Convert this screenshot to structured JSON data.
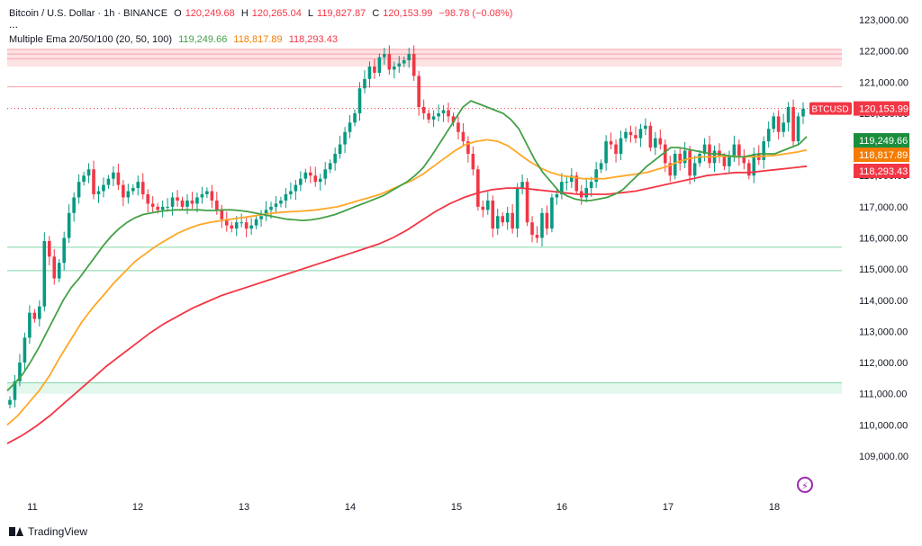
{
  "legend": {
    "symbol": "Bitcoin / U.S. Dollar · 1h · BINANCE",
    "o_label": "O",
    "o_value": "120,249.68",
    "h_label": "H",
    "h_value": "120,265.04",
    "l_label": "L",
    "l_value": "119,827.87",
    "c_label": "C",
    "c_value": "120,153.99",
    "change": "−98.78 (−0.08%)",
    "ellipsis": "...",
    "ema_name": "Multiple Ema 20/50/100 (20, 50, 100)",
    "ema20": "119,249.66",
    "ema50": "118,817.89",
    "ema100": "118,293.43"
  },
  "watermark": {
    "text": "TradingView",
    "icon": "tradingview-logo-icon"
  },
  "icons": {
    "bolt": "lightning-icon"
  },
  "chart_data": {
    "type": "candlestick",
    "ylim": [
      108400,
      123500
    ],
    "y_ticks": [
      109000,
      110000,
      111000,
      112000,
      113000,
      114000,
      115000,
      116000,
      117000,
      118000,
      119000,
      120000,
      121000,
      122000,
      123000
    ],
    "y_tick_labels": [
      "109,000.00",
      "110,000.00",
      "111,000.00",
      "112,000.00",
      "113,000.00",
      "114,000.00",
      "115,000.00",
      "116,000.00",
      "117,000.00",
      "118,000.00",
      "119,000.00",
      "120,000.00",
      "121,000.00",
      "122,000.00",
      "123,000.00"
    ],
    "x_labels": [
      "11",
      "12",
      "13",
      "14",
      "15",
      "16",
      "17",
      "18"
    ],
    "colors": {
      "up": "#089981",
      "down": "#f23645",
      "ema20": "#43a047",
      "ema50": "#ffa726",
      "ema100": "#f23645"
    },
    "ticker": "BTCUSD",
    "last_price": "120,153.99",
    "ema_tags": [
      "119,249.66",
      "118,817.89",
      "118,293.43"
    ],
    "ema_tag_values": [
      119249.66,
      118817.89,
      118293.43
    ],
    "last_price_value": 120153.99,
    "price_close_series": [
      110800,
      111400,
      112000,
      112800,
      113600,
      113400,
      113800,
      115900,
      115400,
      114700,
      115200,
      116000,
      116800,
      117300,
      117800,
      118000,
      118200,
      117400,
      117500,
      117700,
      117900,
      118100,
      117700,
      117300,
      117500,
      117600,
      117800,
      117400,
      117100,
      117000,
      116900,
      117000,
      117000,
      117300,
      117200,
      117000,
      117200,
      117100,
      117300,
      117400,
      117500,
      117200,
      116900,
      116600,
      116400,
      116300,
      116500,
      116500,
      116300,
      116400,
      116600,
      116700,
      116900,
      117000,
      117100,
      117200,
      117400,
      117500,
      117700,
      117900,
      118100,
      118000,
      117800,
      117900,
      118200,
      118400,
      118700,
      119000,
      119400,
      119700,
      120000,
      120800,
      121100,
      121500,
      121300,
      121800,
      121900,
      121400,
      121500,
      121600,
      121700,
      121900,
      121200,
      120200,
      120000,
      119800,
      119900,
      120000,
      120100,
      119900,
      119700,
      119400,
      119100,
      118700,
      118200,
      117000,
      116900,
      117200,
      116300,
      116700,
      116500,
      116800,
      116300,
      117600,
      117800,
      116500,
      116100,
      116000,
      116800,
      116300,
      117300,
      117400,
      117800,
      117800,
      118000,
      117500,
      117300,
      117600,
      117800,
      118200,
      118400,
      119100,
      119000,
      118700,
      119200,
      119400,
      119300,
      119200,
      119500,
      119600,
      118900,
      119200,
      119000,
      118400,
      118000,
      118700,
      118400,
      118800,
      118000,
      118400,
      118700,
      119000,
      118400,
      118800,
      118600,
      118300,
      118600,
      119000,
      118600,
      118400,
      118000,
      118700,
      118500,
      119100,
      119500,
      119900,
      119400,
      119700,
      120200,
      119100,
      119900,
      120150
    ],
    "ema20_series": [
      111100,
      111350,
      111650,
      112050,
      112500,
      113000,
      113500,
      114000,
      114400,
      114700,
      115050,
      115400,
      115750,
      116050,
      116300,
      116500,
      116650,
      116750,
      116800,
      116850,
      116880,
      116900,
      116900,
      116900,
      116900,
      116880,
      116880,
      116900,
      116900,
      116880,
      116850,
      116800,
      116750,
      116700,
      116650,
      116600,
      116580,
      116560,
      116580,
      116620,
      116680,
      116750,
      116850,
      116950,
      117050,
      117150,
      117250,
      117350,
      117500,
      117650,
      117800,
      118000,
      118250,
      118600,
      119000,
      119400,
      119800,
      120200,
      120400,
      120300,
      120200,
      120100,
      120000,
      119800,
      119500,
      119000,
      118500,
      118100,
      117800,
      117500,
      117350,
      117250,
      117200,
      117200,
      117250,
      117300,
      117400,
      117550,
      117800,
      118050,
      118300,
      118500,
      118700,
      118900,
      118900,
      118850,
      118800,
      118750,
      118700,
      118700,
      118650,
      118600,
      118600,
      118650,
      118700,
      118700,
      118700,
      118800,
      118900,
      119000,
      119250
    ],
    "ema50_series": [
      110000,
      110300,
      110700,
      111100,
      111600,
      112200,
      112750,
      113300,
      113750,
      114150,
      114550,
      114900,
      115250,
      115500,
      115750,
      115950,
      116150,
      116300,
      116420,
      116500,
      116550,
      116600,
      116650,
      116700,
      116750,
      116800,
      116830,
      116850,
      116870,
      116900,
      116950,
      117000,
      117100,
      117200,
      117300,
      117400,
      117550,
      117700,
      117850,
      118050,
      118300,
      118550,
      118800,
      119000,
      119100,
      119150,
      119100,
      118950,
      118700,
      118450,
      118250,
      118100,
      118000,
      117950,
      117900,
      117900,
      117900,
      117950,
      118000,
      118050,
      118100,
      118200,
      118300,
      118450,
      118550,
      118600,
      118600,
      118620,
      118620,
      118600,
      118600,
      118620,
      118650,
      118700,
      118750,
      118820
    ],
    "ema100_series": [
      109400,
      109650,
      109950,
      110300,
      110700,
      111100,
      111500,
      111900,
      112250,
      112600,
      112950,
      113250,
      113500,
      113750,
      113950,
      114150,
      114300,
      114450,
      114600,
      114750,
      114900,
      115050,
      115200,
      115350,
      115500,
      115650,
      115800,
      116000,
      116250,
      116550,
      116850,
      117100,
      117300,
      117450,
      117550,
      117600,
      117600,
      117550,
      117500,
      117450,
      117400,
      117400,
      117400,
      117450,
      117500,
      117600,
      117700,
      117800,
      117900,
      118000,
      118050,
      118100,
      118100,
      118150,
      118200,
      118250,
      118300
    ]
  }
}
